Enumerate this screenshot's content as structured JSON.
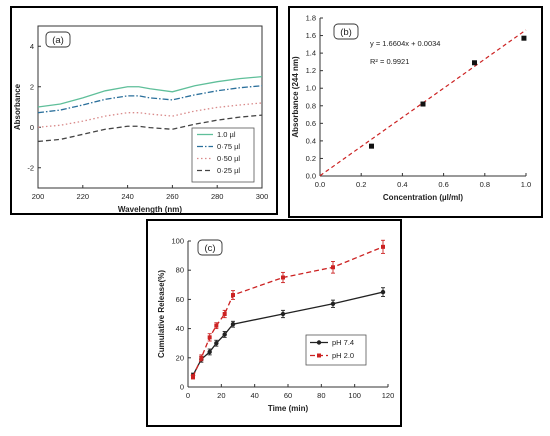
{
  "chart_data": [
    {
      "panel_label": "(a)",
      "type": "line",
      "xlabel": "Wavelength (nm)",
      "ylabel": "Absorbance",
      "xlim": [
        200,
        300
      ],
      "ylim": [
        -3,
        5
      ],
      "xticks": [
        "200",
        "220",
        "240",
        "260",
        "280",
        "300"
      ],
      "yticks": [
        "-2",
        "0",
        "2",
        "4"
      ],
      "legend_position": "bottom-right",
      "x": [
        200,
        210,
        220,
        230,
        240,
        245,
        250,
        260,
        270,
        280,
        290,
        300
      ],
      "series": [
        {
          "name": "1.0 µl",
          "color": "#5fbf9a",
          "dash": "solid",
          "values": [
            1.0,
            1.15,
            1.45,
            1.8,
            2.0,
            2.0,
            1.9,
            1.75,
            2.05,
            2.25,
            2.4,
            2.5
          ]
        },
        {
          "name": "0·75 µl",
          "color": "#2a6f9b",
          "dash": "dashdot",
          "values": [
            0.72,
            0.85,
            1.1,
            1.38,
            1.55,
            1.55,
            1.45,
            1.35,
            1.6,
            1.8,
            1.95,
            2.05
          ]
        },
        {
          "name": "0·50 µl",
          "color": "#d98a8a",
          "dash": "dot",
          "values": [
            0.0,
            0.1,
            0.3,
            0.55,
            0.72,
            0.72,
            0.65,
            0.55,
            0.8,
            0.98,
            1.1,
            1.2
          ]
        },
        {
          "name": "0·25 µl",
          "color": "#444444",
          "dash": "dash",
          "values": [
            -0.7,
            -0.6,
            -0.35,
            -0.1,
            0.05,
            0.05,
            -0.02,
            -0.1,
            0.15,
            0.35,
            0.5,
            0.6
          ]
        }
      ]
    },
    {
      "panel_label": "(b)",
      "type": "scatter",
      "xlabel": "Concentration (µl/ml)",
      "ylabel": "Absorbance (244 nm)",
      "xlim": [
        0,
        1.0
      ],
      "ylim": [
        0,
        1.8
      ],
      "xticks": [
        "0.0",
        "0.2",
        "0.4",
        "0.6",
        "0.8",
        "1.0"
      ],
      "yticks": [
        "0.0",
        "0.2",
        "0.4",
        "0.6",
        "0.8",
        "1.0",
        "1.2",
        "1.4",
        "1.6",
        "1.8"
      ],
      "points": {
        "x": [
          0.25,
          0.5,
          0.75,
          0.99
        ],
        "y": [
          0.34,
          0.82,
          1.29,
          1.57
        ]
      },
      "fit": {
        "slope": 1.6604,
        "intercept": 0.0034,
        "color": "#cc2222"
      },
      "equation": "y = 1.6604x + 0.0034",
      "r2": "R² = 0.9921"
    },
    {
      "panel_label": "(c)",
      "type": "line",
      "xlabel": "Time (min)",
      "ylabel": "Cumulative Release(%)",
      "xlim": [
        0,
        120
      ],
      "ylim": [
        0,
        100
      ],
      "xticks": [
        "0",
        "20",
        "40",
        "60",
        "80",
        "100",
        "120"
      ],
      "yticks": [
        "0",
        "20",
        "40",
        "60",
        "80",
        "100"
      ],
      "legend_position": "bottom-right",
      "x": [
        3,
        8,
        13,
        17,
        22,
        27,
        57,
        87,
        117
      ],
      "series": [
        {
          "name": "pH 7.4",
          "color": "#222222",
          "dash": "solid",
          "marker": "circle",
          "values": [
            8,
            19,
            24,
            30,
            36,
            43,
            50,
            57,
            65
          ],
          "errors": [
            1.5,
            2,
            2,
            2,
            2,
            2,
            2.5,
            2.5,
            3
          ]
        },
        {
          "name": "pH 2.0",
          "color": "#cc2222",
          "dash": "dash",
          "marker": "square",
          "values": [
            7,
            20,
            34,
            42,
            50,
            63,
            75,
            82,
            96
          ],
          "errors": [
            1.5,
            2,
            2.5,
            2,
            2.5,
            3,
            3.5,
            4,
            4.5
          ]
        }
      ]
    }
  ]
}
